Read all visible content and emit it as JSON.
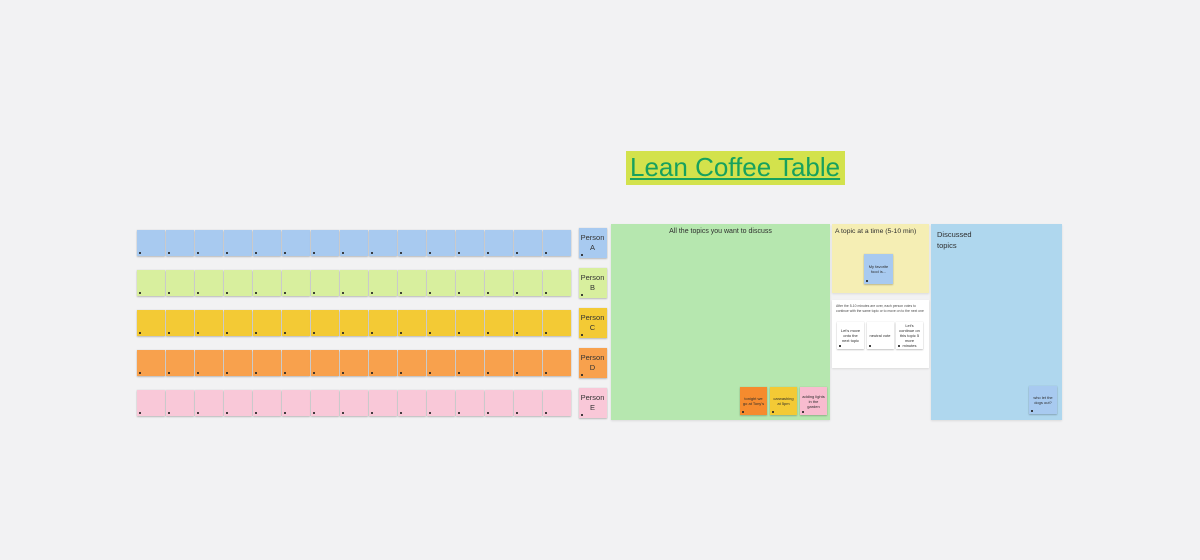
{
  "board": {
    "background": "#f2f2f3"
  },
  "title": {
    "text": "Lean Coffee Table",
    "color": "#17a15e",
    "highlight_color": "#d3e24c"
  },
  "rows": [
    {
      "person_name": "Person",
      "person_letter": "A",
      "color": "#a8caf0",
      "sticky_count": 15
    },
    {
      "person_name": "Person",
      "person_letter": "B",
      "color": "#d8ef9e",
      "sticky_count": 15
    },
    {
      "person_name": "Person",
      "person_letter": "C",
      "color": "#f3ca35",
      "sticky_count": 15
    },
    {
      "person_name": "Person",
      "person_letter": "D",
      "color": "#f8a14d",
      "sticky_count": 15
    },
    {
      "person_name": "Person",
      "person_letter": "E",
      "color": "#f9c8d8",
      "sticky_count": 15
    }
  ],
  "areas": {
    "topics": {
      "label": "All the topics you want to discuss",
      "bg_color": "#b6e7af",
      "stickies": [
        {
          "text": "tonight we go at Tony's",
          "color": "#f68b2e"
        },
        {
          "text": "carwashing at 5pm",
          "color": "#f3ca35"
        },
        {
          "text": "adding lights in the garden",
          "color": "#f8bccf"
        }
      ]
    },
    "current_topic": {
      "label": "A topic at a time (5-10 min)",
      "bg_color": "#f5eeb4",
      "stickies": [
        {
          "text": "My favorite food is...",
          "color": "#a8caf0"
        }
      ]
    },
    "voting": {
      "instruction": "After the 5-10 minutes are over, each person votes to continue with the same topic or to move on to the next one",
      "bg_color": "#ffffff",
      "stickies": [
        {
          "text": "Let's move onto the next topic",
          "color": "#ffffff"
        },
        {
          "text": "neutral vote",
          "color": "#ffffff"
        },
        {
          "text": "Let's continue on this topic 5 more minutes",
          "color": "#ffffff"
        }
      ]
    },
    "discussed": {
      "label": "Discussed topics",
      "bg_color": "#afd7ee",
      "stickies": [
        {
          "text": "who let the dogs out?",
          "color": "#a8caf0"
        }
      ]
    }
  }
}
